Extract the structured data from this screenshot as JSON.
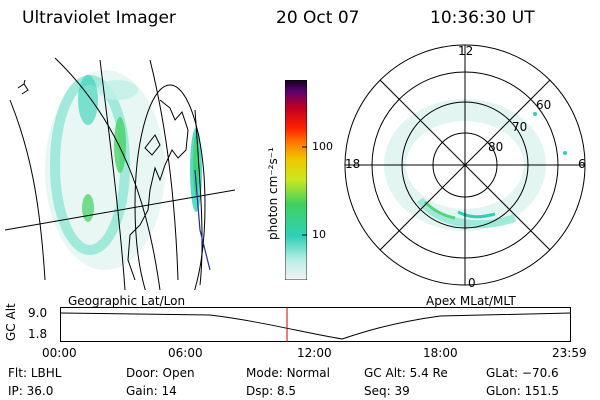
{
  "header": {
    "title": "Ultraviolet Imager",
    "date": "20 Oct 07",
    "time": "10:36:30 UT"
  },
  "left_panel": {
    "caption": "Geographic Lat/Lon"
  },
  "right_panel": {
    "caption": "Apex MLat/MLT",
    "mlt_labels": [
      "12",
      "18",
      "6",
      "0"
    ],
    "mlat_labels": [
      "60",
      "70",
      "80"
    ]
  },
  "colorbar": {
    "unit_label": "photon cm⁻²s⁻¹",
    "ticks": [
      "100",
      "10"
    ],
    "scale": "log",
    "colors": [
      "#f4f4f4",
      "#7fe8d8",
      "#2fd0b8",
      "#40d060",
      "#9fe030",
      "#e8e800",
      "#ffb000",
      "#ff6000",
      "#e00000",
      "#a00040",
      "#500060",
      "#100020"
    ]
  },
  "altitude_plot": {
    "ylabel": "GC Alt",
    "yticks": [
      "9.0",
      "1.8"
    ],
    "xticks": [
      "00:00",
      "06:00",
      "12:00",
      "18:00",
      "23:59"
    ],
    "marker_color": "#c00000"
  },
  "info": {
    "row1": [
      {
        "label": "Flt:",
        "value": "LBHL"
      },
      {
        "label": "Door:",
        "value": "Open"
      },
      {
        "label": "Mode:",
        "value": "Normal"
      },
      {
        "label": "GC Alt:",
        "value": "5.4 Re"
      },
      {
        "label": "GLat:",
        "value": "−70.6"
      }
    ],
    "row2": [
      {
        "label": "IP:",
        "value": "36.0"
      },
      {
        "label": "Gain:",
        "value": "14"
      },
      {
        "label": "Dsp:",
        "value": "8.5"
      },
      {
        "label": "Seq:",
        "value": "39"
      },
      {
        "label": "GLon:",
        "value": "151.5"
      }
    ]
  }
}
